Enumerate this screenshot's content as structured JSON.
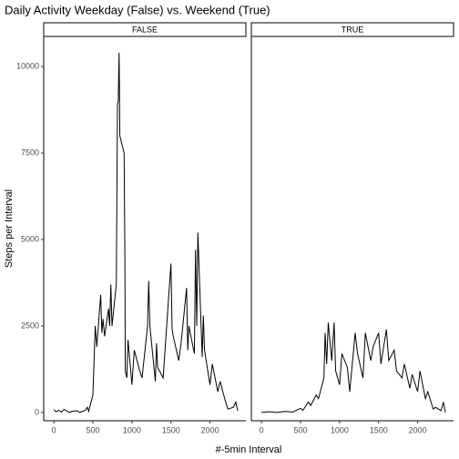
{
  "chart_data": {
    "type": "line",
    "title": "Daily Activity Weekday (False) vs. Weekend (True)",
    "x_label": "#-5min Interval",
    "y_label": "Steps per Interval",
    "color": "#000000",
    "xlim": [
      -130,
      2460
    ],
    "xticks": [
      0,
      500,
      1000,
      1500,
      2000
    ],
    "ylim": [
      -240,
      10870
    ],
    "yticks": [
      0,
      2500,
      5000,
      7500,
      10000
    ],
    "panels": [
      {
        "name": "FALSE",
        "x": [
          0,
          30,
          60,
          100,
          130,
          200,
          230,
          300,
          330,
          400,
          430,
          445,
          500,
          530,
          550,
          600,
          615,
          630,
          650,
          700,
          715,
          730,
          745,
          800,
          815,
          825,
          835,
          840,
          845,
          900,
          910,
          915,
          935,
          950,
          1000,
          1030,
          1100,
          1130,
          1200,
          1215,
          1230,
          1300,
          1315,
          1330,
          1400,
          1430,
          1500,
          1515,
          1530,
          1600,
          1630,
          1700,
          1715,
          1730,
          1800,
          1815,
          1830,
          1845,
          1900,
          1915,
          1930,
          2000,
          2030,
          2100,
          2130,
          2200,
          2230,
          2300,
          2330,
          2355
        ],
        "values": [
          80,
          20,
          60,
          10,
          90,
          0,
          30,
          50,
          0,
          60,
          150,
          30,
          500,
          2500,
          1900,
          3400,
          2300,
          2700,
          2200,
          3000,
          2500,
          3700,
          2500,
          3700,
          8900,
          9000,
          10400,
          9500,
          8000,
          7500,
          4500,
          1200,
          1000,
          2100,
          800,
          1800,
          1200,
          1000,
          2500,
          3800,
          2500,
          900,
          2000,
          1300,
          1000,
          2000,
          4300,
          2400,
          2200,
          1500,
          2000,
          3600,
          1800,
          2500,
          1700,
          4700,
          2500,
          5200,
          1600,
          2800,
          1800,
          800,
          1400,
          600,
          900,
          300,
          100,
          150,
          300,
          50
        ]
      },
      {
        "name": "TRUE",
        "x": [
          0,
          100,
          200,
          300,
          400,
          500,
          530,
          600,
          630,
          700,
          730,
          800,
          815,
          835,
          855,
          900,
          930,
          950,
          1000,
          1030,
          1100,
          1130,
          1200,
          1230,
          1300,
          1330,
          1400,
          1430,
          1500,
          1530,
          1600,
          1630,
          1700,
          1730,
          1800,
          1830,
          1900,
          1930,
          2000,
          2030,
          2100,
          2130,
          2200,
          2230,
          2300,
          2330,
          2355
        ],
        "values": [
          0,
          20,
          0,
          30,
          10,
          120,
          60,
          300,
          200,
          500,
          400,
          1000,
          2300,
          1400,
          2600,
          1500,
          2600,
          1200,
          800,
          1700,
          1300,
          600,
          2300,
          1700,
          1000,
          2300,
          1500,
          1900,
          2300,
          1400,
          2400,
          1500,
          1800,
          1200,
          1000,
          1400,
          700,
          1100,
          600,
          1200,
          400,
          600,
          100,
          150,
          50,
          300,
          0
        ]
      }
    ]
  }
}
